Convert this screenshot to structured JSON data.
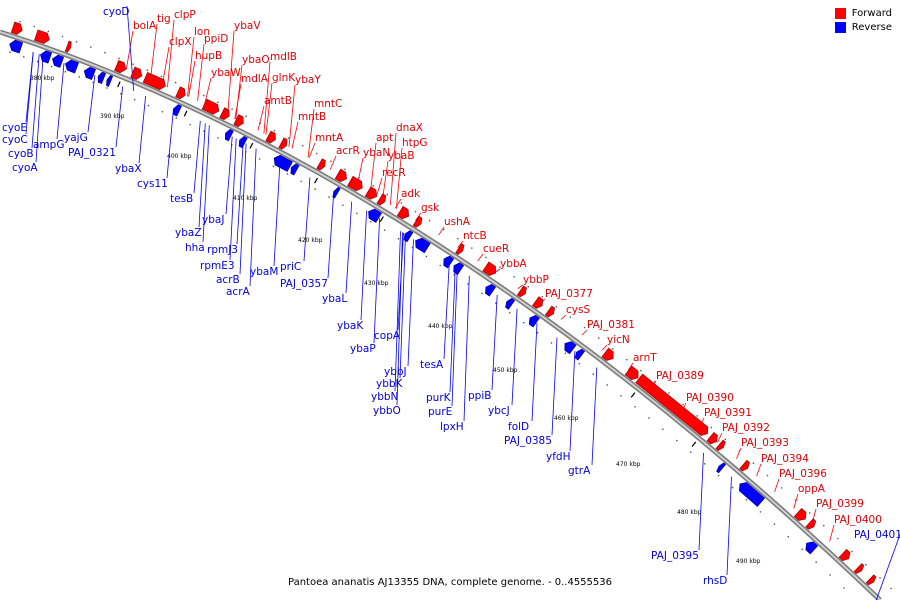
{
  "legend": {
    "forward_label": "Forward",
    "reverse_label": "Reverse",
    "forward_color": "#ff0000",
    "reverse_color": "#0000ff"
  },
  "caption": "Pantoea ananatis AJ13355 DNA, complete genome. - 0..4555536",
  "scale_ticks": [
    "380 kbp",
    "390 kbp",
    "400 kbp",
    "410 kbp",
    "420 kbp",
    "430 kbp",
    "440 kbp",
    "450 kbp",
    "460 kbp",
    "470 kbp",
    "480 kbp",
    "490 kbp"
  ],
  "forward_genes": [
    "bolA",
    "tig",
    "clpP",
    "clpX",
    "lon",
    "ppiD",
    "hupB",
    "ybaV",
    "ybaW",
    "ybaO",
    "mdlB",
    "mdlA",
    "glnK",
    "ybaY",
    "amtB",
    "mntC",
    "mntB",
    "mntA",
    "acrR",
    "apt",
    "dnaX",
    "ybaN",
    "ybaB",
    "htpG",
    "recR",
    "adk",
    "gsk",
    "ushA",
    "ntcB",
    "cueR",
    "ybbA",
    "ybbP",
    "PAJ_0377",
    "cysS",
    "PAJ_0381",
    "yicN",
    "arnT",
    "PAJ_0389",
    "PAJ_0390",
    "PAJ_0391",
    "PAJ_0392",
    "PAJ_0393",
    "PAJ_0394",
    "PAJ_0396",
    "oppA",
    "PAJ_0399",
    "PAJ_0400"
  ],
  "reverse_genes": [
    "cyoD",
    "cyoE",
    "cyoC",
    "cyoB",
    "cyoA",
    "ampG",
    "yajG",
    "PAJ_0321",
    "ybaX",
    "cys11",
    "tesB",
    "ybaJ",
    "ybaZ",
    "hha",
    "rpmJ3",
    "rpmE3",
    "acrB",
    "acrA",
    "ybaM",
    "priC",
    "PAJ_0357",
    "ybaL",
    "ybaK",
    "copA",
    "ybaP",
    "tesA",
    "ybbJ",
    "ybbK",
    "ybbN",
    "ybbO",
    "purK",
    "purE",
    "ppiB",
    "lpxH",
    "ybcJ",
    "folD",
    "PAJ_0385",
    "yfdH",
    "gtrA",
    "PAJ_0395",
    "rhsD",
    "PAJ_0401"
  ]
}
